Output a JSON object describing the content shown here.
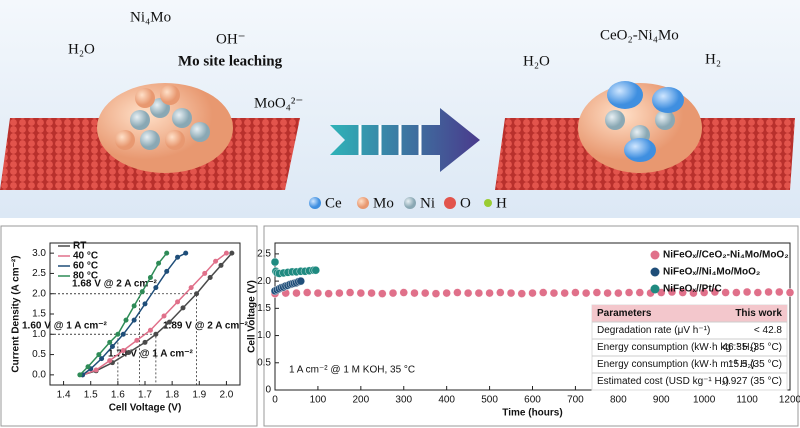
{
  "schematic": {
    "labels": [
      "H₂O",
      "Ni₄Mo",
      "OH⁻",
      "Mo site leaching",
      "MoO₄²⁻",
      "H₂O",
      "CeO₂-Ni₄Mo",
      "H₂"
    ],
    "legend": [
      "Ce",
      "Mo",
      "Ni",
      "O",
      "H"
    ]
  },
  "chart_data": [
    {
      "type": "line",
      "xlabel": "Cell Voltage (V)",
      "ylabel": "Current Density (A cm⁻²)",
      "xlim": [
        1.35,
        2.05
      ],
      "xticks": [
        1.4,
        1.5,
        1.6,
        1.7,
        1.8,
        1.9,
        {
          "value": 2,
          "label": "2.0"
        }
      ],
      "ylim": [
        -0.25,
        3.25
      ],
      "yticks": [
        {
          "value": 0,
          "label": "0.0"
        },
        0.5,
        {
          "value": 1,
          "label": "1.0"
        },
        1.5,
        {
          "value": 2,
          "label": "2.0"
        },
        2.5,
        {
          "value": 3,
          "label": "3.0"
        }
      ],
      "series": [
        {
          "name": "RT",
          "color": "#4a4a4a",
          "x": [
            1.47,
            1.52,
            1.58,
            1.64,
            1.7,
            1.74,
            1.79,
            1.84,
            1.89,
            1.94,
            1.98,
            2.02
          ],
          "values": [
            0,
            0.1,
            0.3,
            0.55,
            0.8,
            1.0,
            1.3,
            1.65,
            2.0,
            2.4,
            2.7,
            3.0
          ]
        },
        {
          "name": "40 °C",
          "color": "#e0708a",
          "x": [
            1.47,
            1.52,
            1.57,
            1.62,
            1.67,
            1.72,
            1.77,
            1.82,
            1.87,
            1.92,
            1.96,
            2.0
          ],
          "values": [
            0,
            0.12,
            0.35,
            0.6,
            0.85,
            1.1,
            1.45,
            1.8,
            2.15,
            2.5,
            2.8,
            3.0
          ]
        },
        {
          "name": "60 °C",
          "color": "#1f4e79",
          "x": [
            1.47,
            1.5,
            1.54,
            1.58,
            1.62,
            1.66,
            1.7,
            1.74,
            1.78,
            1.82,
            1.85
          ],
          "values": [
            0,
            0.15,
            0.4,
            0.7,
            1.0,
            1.35,
            1.75,
            2.15,
            2.55,
            2.9,
            3.0
          ]
        },
        {
          "name": "80 °C",
          "color": "#2e8b57",
          "x": [
            1.46,
            1.49,
            1.53,
            1.57,
            1.6,
            1.63,
            1.66,
            1.69,
            1.72,
            1.75,
            1.78
          ],
          "values": [
            0,
            0.2,
            0.5,
            0.8,
            1.0,
            1.35,
            1.7,
            2.05,
            2.4,
            2.75,
            3.0
          ]
        }
      ],
      "annotations": [
        {
          "x": 1.68,
          "y": 2,
          "label": "1.68 V @ 2 A cm⁻²"
        },
        {
          "x": 1.6,
          "y": 1,
          "label": "1.60 V @ 1 A cm⁻²"
        },
        {
          "x": 1.89,
          "y": 2,
          "label": "1.89 V @ 2 A cm⁻²"
        },
        {
          "x": 1.74,
          "y": 1,
          "label": "1.74 V @ 1 A cm⁻²"
        }
      ]
    },
    {
      "type": "scatter",
      "xlabel": "Time (hours)",
      "ylabel": "Cell Voltage (V)",
      "xlim": [
        0,
        1200
      ],
      "xticks": [
        0,
        100,
        200,
        300,
        400,
        500,
        600,
        700,
        800,
        900,
        1000,
        1100,
        1200
      ],
      "ylim": [
        0,
        2.7
      ],
      "yticks": [
        0,
        0.5,
        {
          "value": 1,
          "label": "1.0"
        },
        1.5,
        {
          "value": 2,
          "label": "2.0"
        },
        2.5
      ],
      "series": [
        {
          "name": "NiFeOₓ//CeO₂-Ni₄Mo/MoO₂",
          "color": "#e0708a",
          "x": [
            0,
            25,
            50,
            75,
            100,
            125,
            150,
            175,
            200,
            225,
            250,
            275,
            300,
            325,
            350,
            375,
            400,
            425,
            450,
            475,
            500,
            525,
            550,
            575,
            600,
            625,
            650,
            675,
            700,
            725,
            750,
            775,
            800,
            825,
            850,
            875,
            900,
            925,
            950,
            975,
            1000,
            1025,
            1050,
            1075,
            1100,
            1125,
            1150,
            1175,
            1200
          ],
          "values": [
            1.77,
            1.78,
            1.78,
            1.79,
            1.78,
            1.77,
            1.78,
            1.79,
            1.78,
            1.78,
            1.77,
            1.78,
            1.79,
            1.78,
            1.78,
            1.77,
            1.78,
            1.79,
            1.78,
            1.78,
            1.78,
            1.79,
            1.78,
            1.77,
            1.78,
            1.79,
            1.78,
            1.78,
            1.79,
            1.78,
            1.79,
            1.78,
            1.78,
            1.79,
            1.79,
            1.78,
            1.79,
            1.8,
            1.79,
            1.78,
            1.79,
            1.8,
            1.79,
            1.79,
            1.8,
            1.79,
            1.8,
            1.8,
            1.79
          ]
        },
        {
          "name": "NiFeOₓ//Ni₄Mo/MoO₂",
          "color": "#1f4e79",
          "x": [
            0,
            5,
            10,
            15,
            20,
            25,
            30,
            35,
            40,
            45,
            50,
            55,
            60
          ],
          "values": [
            1.82,
            1.84,
            1.86,
            1.88,
            1.89,
            1.91,
            1.92,
            1.94,
            1.95,
            1.96,
            1.97,
            1.99,
            2.0
          ]
        },
        {
          "name": "NiFeOₓ//Pt/C",
          "color": "#1f8a80",
          "x": [
            0,
            2,
            5,
            10,
            20,
            30,
            40,
            50,
            60,
            70,
            80,
            90,
            95
          ],
          "values": [
            2.35,
            2.18,
            2.15,
            2.14,
            2.15,
            2.16,
            2.17,
            2.17,
            2.18,
            2.18,
            2.19,
            2.2,
            2.2
          ]
        }
      ],
      "annotation": "1 A cm⁻² @ 1 M KOH, 35 °C",
      "table": {
        "header": [
          "Parameters",
          "This work"
        ],
        "rows": [
          [
            "Degradation rate (μV h⁻¹)",
            "< 42.8"
          ],
          [
            "Energy consumption (kW·h kg⁻¹ H₂)",
            "46.35 (35 °C)"
          ],
          [
            "Energy consumption (kW·h m⁻³ H₂)",
            "15.5 (35 °C)"
          ],
          [
            "Estimated cost (USD kg⁻¹ H₂)",
            "0.927 (35 °C)"
          ]
        ]
      }
    }
  ]
}
